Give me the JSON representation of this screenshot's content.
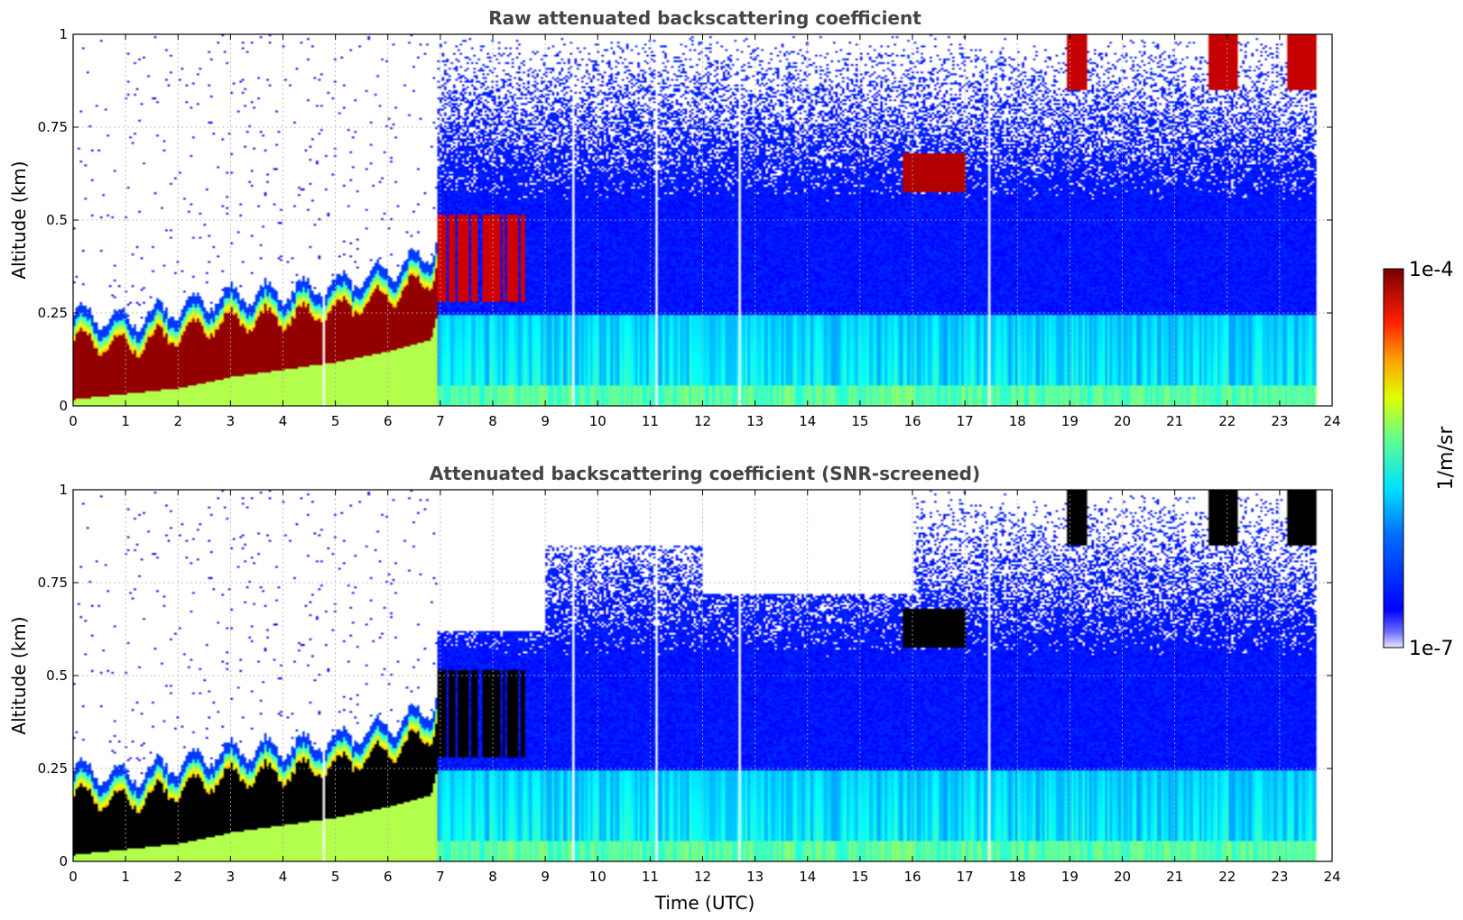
{
  "chart_data": [
    {
      "type": "heatmap",
      "title": "Raw attenuated backscattering coefficient",
      "ylabel": "Altitude (km)",
      "xlabel": "",
      "xlim": [
        0,
        24
      ],
      "ylim": [
        0,
        1
      ],
      "x_ticks": [
        0,
        1,
        2,
        3,
        4,
        5,
        6,
        7,
        8,
        9,
        10,
        11,
        12,
        13,
        14,
        15,
        16,
        17,
        18,
        19,
        20,
        21,
        22,
        23,
        24
      ],
      "y_ticks": [
        {
          "value": 0,
          "label": "0"
        },
        {
          "value": 0.25,
          "label": "0.25"
        },
        {
          "value": 0.5,
          "label": "0.5"
        },
        {
          "value": 0.75,
          "label": "0.75"
        },
        {
          "value": 1,
          "label": "1"
        }
      ],
      "grid": true,
      "screened": false
    },
    {
      "type": "heatmap",
      "title": "Attenuated backscattering coefficient (SNR-screened)",
      "ylabel": "Altitude (km)",
      "xlabel": "Time (UTC)",
      "xlim": [
        0,
        24
      ],
      "ylim": [
        0,
        1
      ],
      "x_ticks": [
        0,
        1,
        2,
        3,
        4,
        5,
        6,
        7,
        8,
        9,
        10,
        11,
        12,
        13,
        14,
        15,
        16,
        17,
        18,
        19,
        20,
        21,
        22,
        23,
        24
      ],
      "y_ticks": [
        {
          "value": 0,
          "label": "0"
        },
        {
          "value": 0.25,
          "label": "0.25"
        },
        {
          "value": 0.5,
          "label": "0.5"
        },
        {
          "value": 0.75,
          "label": "0.75"
        },
        {
          "value": 1,
          "label": "1"
        }
      ],
      "grid": true,
      "screened": true
    }
  ],
  "colorbar": {
    "label": "1/m/sr",
    "min_label": "1e-7",
    "max_label": "1e-4",
    "scale": "log",
    "colormap": "jet",
    "min": 1e-07,
    "max": 0.0001
  }
}
